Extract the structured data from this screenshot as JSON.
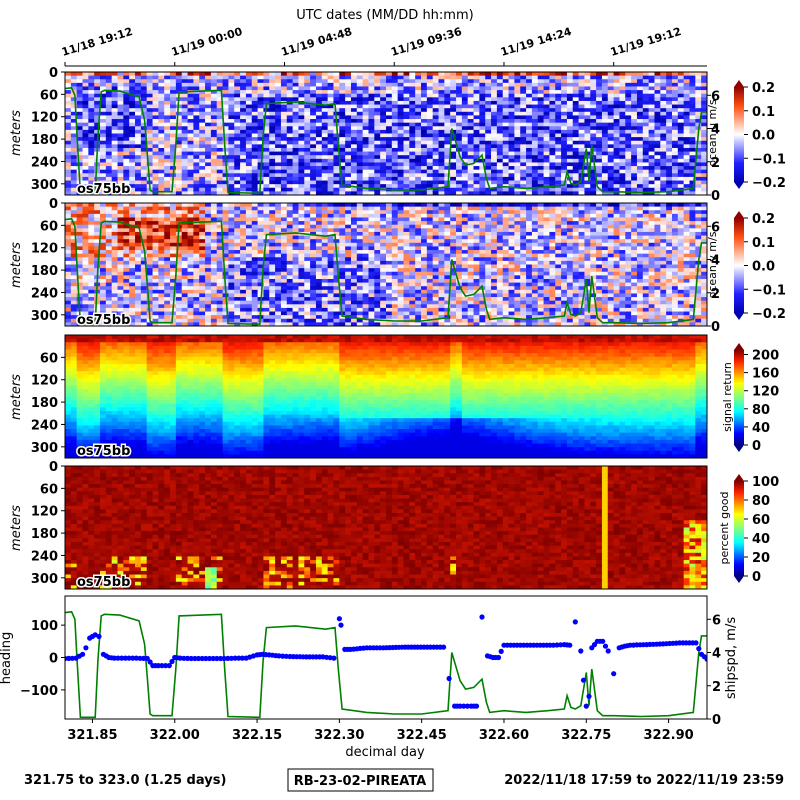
{
  "figure": {
    "top_axis_title": "UTC dates (MM/DD hh:mm)",
    "top_ticks": [
      {
        "label": "11/18 19:12",
        "x": 321.8
      },
      {
        "label": "11/19 00:00",
        "x": 322.0
      },
      {
        "label": "11/19 04:48",
        "x": 322.2
      },
      {
        "label": "11/19 09:36",
        "x": 322.4
      },
      {
        "label": "11/19 14:24",
        "x": 322.6
      },
      {
        "label": "11/19 19:12",
        "x": 322.8
      }
    ],
    "footer_left": "321.75 to 323.0 (1.25 days)",
    "footer_center": "RB-23-02-PIREATA",
    "footer_right": "2022/11/18 17:59 to 2022/11/19 23:59",
    "colors": {
      "footer_text": "#800080",
      "heading": "#0000ff",
      "shipspd": "#008000"
    }
  },
  "chart_data": [
    {
      "type": "heatmap",
      "panel": "ocean-u",
      "inset_label": "os75bb",
      "ylabel": "meters",
      "yticks": [
        0,
        60,
        120,
        180,
        240,
        300
      ],
      "ylim": [
        330,
        0
      ],
      "xlim": [
        321.8,
        322.97
      ],
      "colorbar": {
        "label": "ocean u m/s",
        "ticks": [
          0.2,
          0.1,
          0.0,
          -0.1,
          -0.2
        ],
        "tick_labels": [
          "0.2",
          "0.1",
          "0.0",
          "−0.1",
          "−0.2"
        ],
        "range": [
          -0.2,
          0.2
        ],
        "colormap": "seismic"
      },
      "overlay": {
        "name": "shipspd",
        "right_ticks": [
          6,
          4,
          2,
          0
        ],
        "color": "#008000"
      }
    },
    {
      "type": "heatmap",
      "panel": "ocean-v",
      "inset_label": "os75bb",
      "ylabel": "meters",
      "yticks": [
        0,
        60,
        120,
        180,
        240,
        300
      ],
      "ylim": [
        330,
        0
      ],
      "xlim": [
        321.8,
        322.97
      ],
      "colorbar": {
        "label": "ocean v m/s",
        "ticks": [
          0.2,
          0.1,
          0.0,
          -0.1,
          -0.2
        ],
        "tick_labels": [
          "0.2",
          "0.1",
          "0.0",
          "−0.1",
          "−0.2"
        ],
        "range": [
          -0.2,
          0.2
        ],
        "colormap": "seismic"
      },
      "overlay": {
        "name": "shipspd",
        "right_ticks": [
          6,
          4,
          2,
          0
        ],
        "color": "#008000"
      }
    },
    {
      "type": "heatmap",
      "panel": "signal-return",
      "inset_label": "os75bb",
      "ylabel": "meters",
      "yticks": [
        60,
        120,
        180,
        240,
        300
      ],
      "ylim": [
        330,
        0
      ],
      "xlim": [
        321.8,
        322.97
      ],
      "colorbar": {
        "label": "signal return",
        "ticks": [
          200,
          160,
          120,
          80,
          40,
          0
        ],
        "range": [
          0,
          210
        ],
        "colormap": "jet"
      }
    },
    {
      "type": "heatmap",
      "panel": "percent-good",
      "inset_label": "os75bb",
      "ylabel": "meters",
      "yticks": [
        0,
        60,
        120,
        180,
        240,
        300
      ],
      "ylim": [
        330,
        0
      ],
      "xlim": [
        321.8,
        322.97
      ],
      "colorbar": {
        "label": "percent good",
        "ticks": [
          100,
          80,
          60,
          40,
          20,
          0
        ],
        "range": [
          0,
          100
        ],
        "colormap": "jet"
      }
    },
    {
      "type": "line",
      "panel": "heading-shipspd",
      "xlabel": "decimal day",
      "xticks": [
        321.85,
        322.0,
        322.15,
        322.3,
        322.45,
        322.6,
        322.75,
        322.9
      ],
      "xtick_labels": [
        "321.85",
        "322.00",
        "322.15",
        "322.30",
        "322.45",
        "322.60",
        "322.75",
        "322.90"
      ],
      "xlim": [
        321.8,
        322.97
      ],
      "left_axis": {
        "label": "heading",
        "ticks": [
          100,
          0,
          -100
        ],
        "tick_labels": [
          "100",
          "0",
          "−100"
        ],
        "range": [
          -190,
          190
        ],
        "color": "#0000ff"
      },
      "right_axis": {
        "label": "shipspd, m/s",
        "ticks": [
          6,
          4,
          2,
          0
        ],
        "range": [
          0,
          7.4
        ],
        "color": "#008000"
      },
      "series": [
        {
          "name": "heading",
          "style": "scatter",
          "x": [
            321.8,
            321.82,
            321.832,
            321.838,
            321.845,
            321.855,
            321.862,
            321.87,
            321.88,
            321.89,
            321.91,
            321.93,
            321.95,
            321.96,
            321.97,
            321.99,
            322.0,
            322.01,
            322.03,
            322.05,
            322.07,
            322.09,
            322.11,
            322.13,
            322.15,
            322.16,
            322.19,
            322.21,
            322.24,
            322.27,
            322.29,
            322.3,
            322.303,
            322.31,
            322.32,
            322.35,
            322.38,
            322.42,
            322.46,
            322.49,
            322.5,
            322.51,
            322.52,
            322.54,
            322.55,
            322.56,
            322.57,
            322.58,
            322.59,
            322.6,
            322.63,
            322.66,
            322.69,
            322.71,
            322.72,
            322.73,
            322.74,
            322.745,
            322.75,
            322.755,
            322.76,
            322.77,
            322.78,
            322.79,
            322.8,
            322.81,
            322.82,
            322.83,
            322.86,
            322.89,
            322.92,
            322.95,
            322.96,
            322.97
          ],
          "y": [
            -3,
            -2,
            10,
            30,
            60,
            70,
            65,
            10,
            0,
            -2,
            -2,
            -2,
            -3,
            -25,
            -25,
            -25,
            0,
            -2,
            -3,
            -3,
            -3,
            -3,
            -2,
            -2,
            8,
            10,
            5,
            3,
            2,
            2,
            -2,
            120,
            100,
            25,
            25,
            30,
            30,
            32,
            32,
            32,
            -65,
            -150,
            -150,
            -150,
            -150,
            125,
            5,
            0,
            0,
            38,
            38,
            38,
            38,
            40,
            38,
            110,
            20,
            -70,
            -150,
            -120,
            30,
            50,
            50,
            20,
            -50,
            30,
            35,
            38,
            40,
            42,
            45,
            45,
            10,
            -5
          ]
        },
        {
          "name": "shipspd",
          "style": "line",
          "x": [
            321.8,
            321.812,
            321.818,
            321.822,
            321.828,
            321.855,
            321.86,
            321.866,
            321.872,
            321.9,
            321.935,
            321.945,
            321.95,
            321.955,
            321.96,
            321.995,
            322.002,
            322.008,
            322.085,
            322.091,
            322.097,
            322.155,
            322.161,
            322.167,
            322.22,
            322.275,
            322.292,
            322.298,
            322.305,
            322.35,
            322.4,
            322.45,
            322.498,
            322.505,
            322.512,
            322.52,
            322.53,
            322.545,
            322.56,
            322.568,
            322.574,
            322.6,
            322.64,
            322.68,
            322.71,
            322.715,
            322.722,
            322.73,
            322.74,
            322.75,
            322.755,
            322.76,
            322.77,
            322.78,
            322.8,
            322.85,
            322.9,
            322.945,
            322.955,
            322.96,
            322.97
          ],
          "y": [
            6.4,
            6.45,
            6.0,
            3.5,
            0.1,
            0.1,
            3.5,
            6.2,
            6.3,
            6.25,
            5.9,
            4.5,
            2.5,
            0.3,
            0.2,
            0.2,
            3.0,
            6.2,
            6.3,
            3.0,
            0.15,
            0.1,
            3.5,
            5.5,
            5.6,
            5.4,
            5.5,
            3.0,
            0.6,
            0.4,
            0.3,
            0.3,
            0.5,
            4.0,
            3.2,
            2.3,
            1.8,
            1.9,
            2.4,
            1.0,
            0.4,
            0.5,
            0.4,
            0.5,
            0.6,
            1.4,
            0.7,
            0.6,
            0.8,
            2.8,
            0.8,
            3.0,
            0.5,
            0.2,
            0.2,
            0.15,
            0.2,
            0.4,
            4.0,
            5.0,
            5.0
          ]
        }
      ]
    }
  ]
}
